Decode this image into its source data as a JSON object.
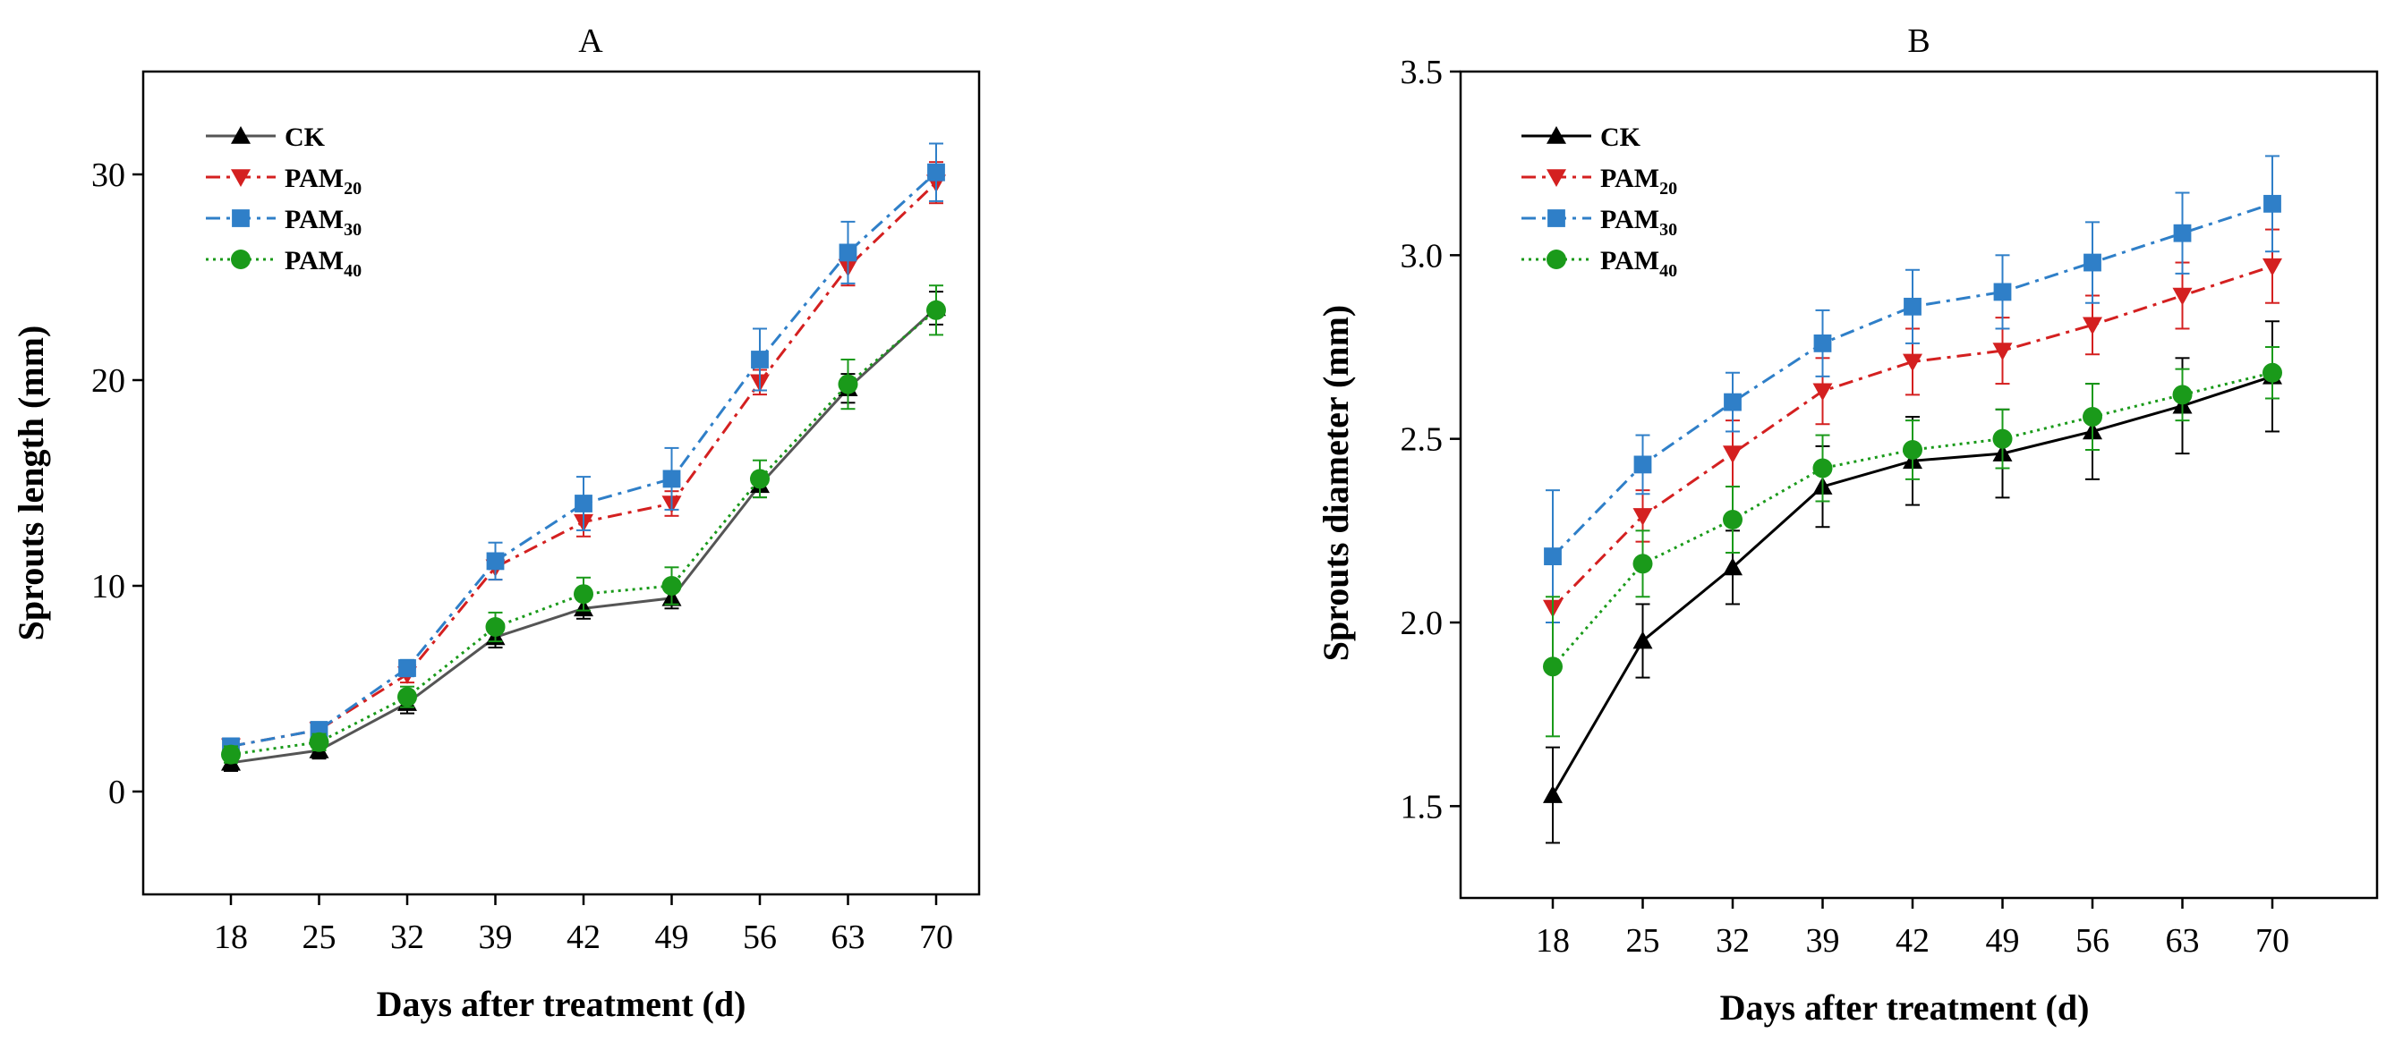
{
  "chart_data": [
    {
      "type": "line",
      "title": "A",
      "xlabel": "Days after treatment (d)",
      "ylabel": "Sprouts length (mm)",
      "categories": [
        "18",
        "25",
        "32",
        "39",
        "42",
        "49",
        "56",
        "63",
        "70"
      ],
      "ylim": [
        -5,
        35
      ],
      "yticks": [
        0,
        10,
        20,
        30
      ],
      "legend_position": "top-left",
      "grid": false,
      "series": [
        {
          "name": "CK",
          "name_base": "CK",
          "name_sub": "",
          "color": "#000000",
          "line_color": "#555555",
          "dash": "solid",
          "marker": "triangle-up",
          "values": [
            1.4,
            2.0,
            4.3,
            7.5,
            8.9,
            9.4,
            14.9,
            19.6,
            23.5
          ],
          "errors": [
            0.4,
            0.4,
            0.5,
            0.5,
            0.5,
            0.5,
            0.6,
            0.7,
            0.8
          ]
        },
        {
          "name": "PAM20",
          "name_base": "PAM",
          "name_sub": "20",
          "color": "#d42020",
          "line_color": "#d42020",
          "dash": "dashdot",
          "marker": "triangle-down",
          "values": [
            2.2,
            3.0,
            5.7,
            10.9,
            13.1,
            14.0,
            19.9,
            25.5,
            29.6
          ],
          "errors": [
            0.3,
            0.3,
            0.4,
            0.6,
            0.7,
            0.6,
            0.6,
            0.9,
            1.0
          ]
        },
        {
          "name": "PAM30",
          "name_base": "PAM",
          "name_sub": "30",
          "color": "#2f7fc8",
          "line_color": "#2f7fc8",
          "dash": "dashdot",
          "marker": "square",
          "values": [
            2.2,
            3.0,
            6.0,
            11.2,
            14.0,
            15.2,
            21.0,
            26.2,
            30.1
          ],
          "errors": [
            0.3,
            0.3,
            0.4,
            0.9,
            1.3,
            1.5,
            1.5,
            1.5,
            1.4
          ]
        },
        {
          "name": "PAM40",
          "name_base": "PAM",
          "name_sub": "40",
          "color": "#1a9a1a",
          "line_color": "#1a9a1a",
          "dash": "dotted",
          "marker": "circle",
          "values": [
            1.8,
            2.4,
            4.6,
            8.0,
            9.6,
            10.0,
            15.2,
            19.8,
            23.4
          ],
          "errors": [
            0.4,
            0.4,
            0.5,
            0.7,
            0.8,
            0.9,
            0.9,
            1.2,
            1.2
          ]
        }
      ]
    },
    {
      "type": "line",
      "title": "B",
      "xlabel": "Days after treatment (d)",
      "ylabel": "Sprouts diameter (mm)",
      "categories": [
        "18",
        "25",
        "32",
        "39",
        "42",
        "49",
        "56",
        "63",
        "70"
      ],
      "ylim": [
        1.25,
        3.5
      ],
      "yticks": [
        "1.5",
        "2.0",
        "2.5",
        "3.0",
        "3.5"
      ],
      "legend_position": "top-left",
      "grid": false,
      "series": [
        {
          "name": "CK",
          "name_base": "CK",
          "name_sub": "",
          "color": "#000000",
          "line_color": "#000000",
          "dash": "solid",
          "marker": "triangle-up",
          "values": [
            1.53,
            1.95,
            2.15,
            2.37,
            2.44,
            2.46,
            2.52,
            2.59,
            2.67
          ],
          "errors": [
            0.13,
            0.1,
            0.1,
            0.11,
            0.12,
            0.12,
            0.13,
            0.13,
            0.15
          ]
        },
        {
          "name": "PAM20",
          "name_base": "PAM",
          "name_sub": "20",
          "color": "#d42020",
          "line_color": "#d42020",
          "dash": "dashdot",
          "marker": "triangle-down",
          "values": [
            2.04,
            2.29,
            2.46,
            2.63,
            2.71,
            2.74,
            2.81,
            2.89,
            2.97
          ],
          "errors": [
            0.0,
            0.07,
            0.09,
            0.09,
            0.09,
            0.09,
            0.08,
            0.09,
            0.1
          ]
        },
        {
          "name": "PAM30",
          "name_base": "PAM",
          "name_sub": "30",
          "color": "#2f7fc8",
          "line_color": "#2f7fc8",
          "dash": "dashdot",
          "marker": "square",
          "values": [
            2.18,
            2.43,
            2.6,
            2.76,
            2.86,
            2.9,
            2.98,
            3.06,
            3.14
          ],
          "errors": [
            0.18,
            0.08,
            0.08,
            0.09,
            0.1,
            0.1,
            0.11,
            0.11,
            0.13
          ]
        },
        {
          "name": "PAM40",
          "name_base": "PAM",
          "name_sub": "40",
          "color": "#1a9a1a",
          "line_color": "#1a9a1a",
          "dash": "dotted",
          "marker": "circle",
          "values": [
            1.88,
            2.16,
            2.28,
            2.42,
            2.47,
            2.5,
            2.56,
            2.62,
            2.68
          ],
          "errors": [
            0.19,
            0.09,
            0.09,
            0.09,
            0.08,
            0.08,
            0.09,
            0.07,
            0.07
          ]
        }
      ]
    }
  ]
}
